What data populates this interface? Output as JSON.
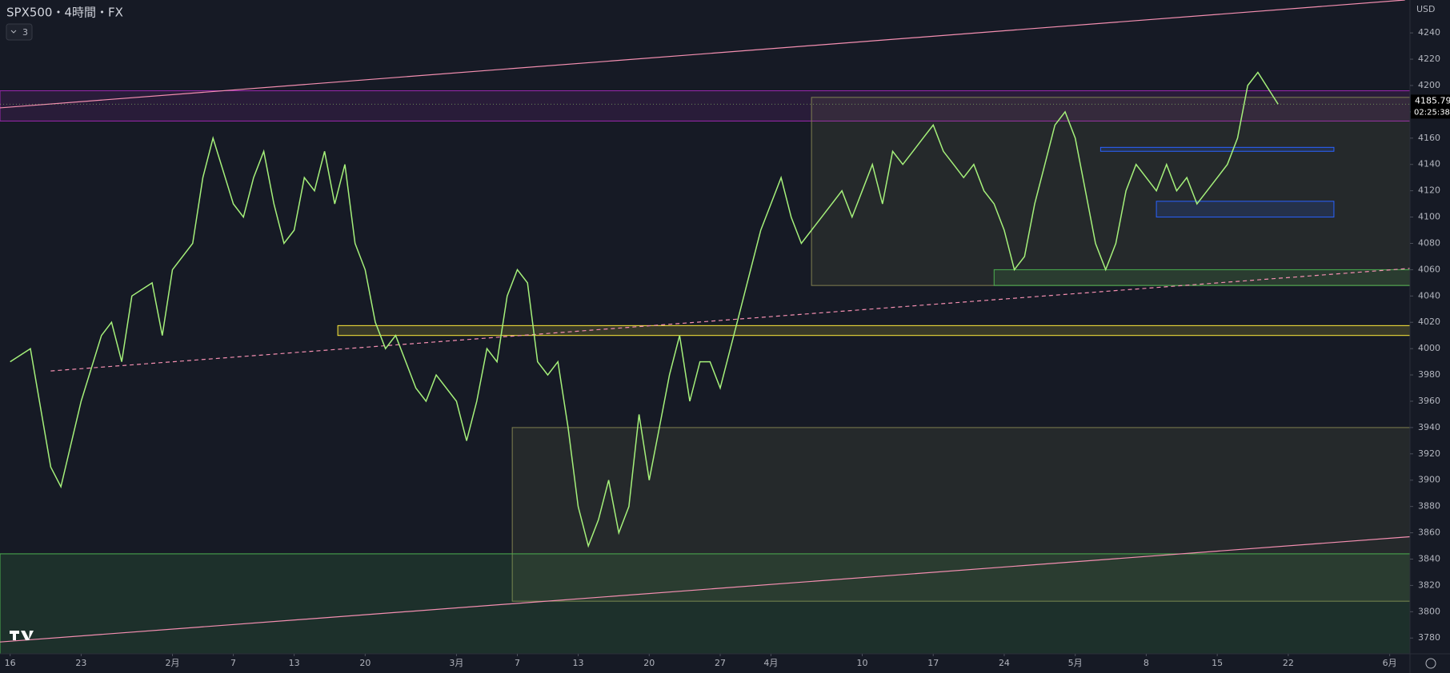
{
  "chart_data": {
    "type": "line",
    "title": "SPX500・4時間・FX",
    "indicator_count": "3",
    "currency": "USD",
    "countdown": "02:25:38",
    "xlim": [
      -1,
      138
    ],
    "ylim": [
      3768,
      4265
    ],
    "xticks": [
      {
        "value": 0,
        "label": "16"
      },
      {
        "value": 7,
        "label": "23"
      },
      {
        "value": 16,
        "label": "2月"
      },
      {
        "value": 22,
        "label": "7"
      },
      {
        "value": 28,
        "label": "13"
      },
      {
        "value": 35,
        "label": "20"
      },
      {
        "value": 44,
        "label": "3月"
      },
      {
        "value": 50,
        "label": "7"
      },
      {
        "value": 56,
        "label": "13"
      },
      {
        "value": 63,
        "label": "20"
      },
      {
        "value": 70,
        "label": "27"
      },
      {
        "value": 75,
        "label": "4月"
      },
      {
        "value": 84,
        "label": "10"
      },
      {
        "value": 91,
        "label": "17"
      },
      {
        "value": 98,
        "label": "24"
      },
      {
        "value": 105,
        "label": "5月"
      },
      {
        "value": 112,
        "label": "8"
      },
      {
        "value": 119,
        "label": "15"
      },
      {
        "value": 126,
        "label": "22"
      },
      {
        "value": 136,
        "label": "6月"
      }
    ],
    "yticks": [
      3780,
      3800,
      3820,
      3840,
      3860,
      3880,
      3900,
      3920,
      3940,
      3960,
      3980,
      4000,
      4020,
      4040,
      4060,
      4080,
      4100,
      4120,
      4140,
      4160,
      4180,
      4200,
      4220,
      4240
    ],
    "zones": [
      {
        "x": [
          -1,
          138
        ],
        "y": [
          4173,
          4196
        ],
        "color": "#9c27b0"
      },
      {
        "x": [
          79,
          138
        ],
        "y": [
          4048,
          4191
        ],
        "color": "#808050"
      },
      {
        "x": [
          49.5,
          138
        ],
        "y": [
          3808,
          3940
        ],
        "color": "#808050"
      },
      {
        "x": [
          -1,
          138
        ],
        "y": [
          3768,
          3844
        ],
        "color": "#4caf50"
      },
      {
        "x": [
          32.3,
          138
        ],
        "y": [
          4010,
          4017.5
        ],
        "color": "#ffeb3b"
      },
      {
        "x": [
          97,
          138
        ],
        "y": [
          4048,
          4060
        ],
        "color": "#4caf50"
      },
      {
        "x": [
          107.5,
          130.5
        ],
        "y": [
          4150,
          4153
        ],
        "color": "#2962ff"
      },
      {
        "x": [
          113,
          130.5
        ],
        "y": [
          4100,
          4112
        ],
        "color": "#2962ff"
      }
    ],
    "trendlines": [
      {
        "x": [
          -1,
          137.5
        ],
        "y": [
          4183,
          4265
        ],
        "color": "#f48fb1",
        "dashed": false
      },
      {
        "x": [
          -1,
          138
        ],
        "y": [
          3777,
          3857
        ],
        "color": "#f48fb1",
        "dashed": false
      },
      {
        "x": [
          4,
          138
        ],
        "y": [
          3983,
          4061
        ],
        "color": "#f48fb1",
        "dashed": true
      }
    ],
    "series": [
      {
        "name": "SPX500",
        "color": "#a5f07a",
        "x": [
          0,
          2,
          4,
          5,
          7,
          9,
          10,
          11,
          12,
          14,
          15,
          16,
          18,
          19,
          20,
          22,
          23,
          24,
          25,
          26,
          27,
          28,
          29,
          30,
          31,
          32,
          33,
          34,
          35,
          36,
          37,
          38,
          39,
          40,
          41,
          42,
          44,
          45,
          46,
          47,
          48,
          49,
          50,
          51,
          52,
          53,
          54,
          55,
          56,
          57,
          58,
          59,
          60,
          61,
          62,
          63,
          64,
          65,
          66,
          67,
          68,
          69,
          70,
          71,
          72,
          73,
          74,
          75,
          76,
          77,
          78,
          79,
          80,
          81,
          82,
          83,
          84,
          85,
          86,
          87,
          88,
          89,
          90,
          91,
          92,
          93,
          94,
          95,
          96,
          97,
          98,
          99,
          100,
          101,
          102,
          103,
          104,
          105,
          106,
          107,
          108,
          109,
          110,
          111,
          112,
          113,
          114,
          115,
          116,
          117,
          118,
          119,
          120,
          121,
          122,
          123,
          125
        ],
        "values": [
          3990,
          4000,
          3910,
          3895,
          3960,
          4010,
          4020,
          3990,
          4040,
          4050,
          4010,
          4060,
          4080,
          4130,
          4160,
          4110,
          4100,
          4130,
          4150,
          4110,
          4080,
          4090,
          4130,
          4120,
          4150,
          4110,
          4140,
          4080,
          4060,
          4020,
          4000,
          4010,
          3990,
          3970,
          3960,
          3980,
          3960,
          3930,
          3960,
          4000,
          3990,
          4040,
          4060,
          4050,
          3990,
          3980,
          3990,
          3940,
          3880,
          3850,
          3870,
          3900,
          3860,
          3880,
          3950,
          3900,
          3940,
          3980,
          4010,
          3960,
          3990,
          3990,
          3970,
          4000,
          4030,
          4060,
          4090,
          4110,
          4130,
          4100,
          4080,
          4090,
          4100,
          4110,
          4120,
          4100,
          4120,
          4140,
          4110,
          4150,
          4140,
          4150,
          4160,
          4170,
          4150,
          4140,
          4130,
          4140,
          4120,
          4110,
          4090,
          4060,
          4070,
          4110,
          4140,
          4170,
          4180,
          4160,
          4120,
          4080,
          4060,
          4080,
          4120,
          4140,
          4130,
          4120,
          4140,
          4120,
          4130,
          4110,
          4120,
          4130,
          4140,
          4160,
          4200,
          4210,
          4185.79
        ]
      }
    ]
  }
}
